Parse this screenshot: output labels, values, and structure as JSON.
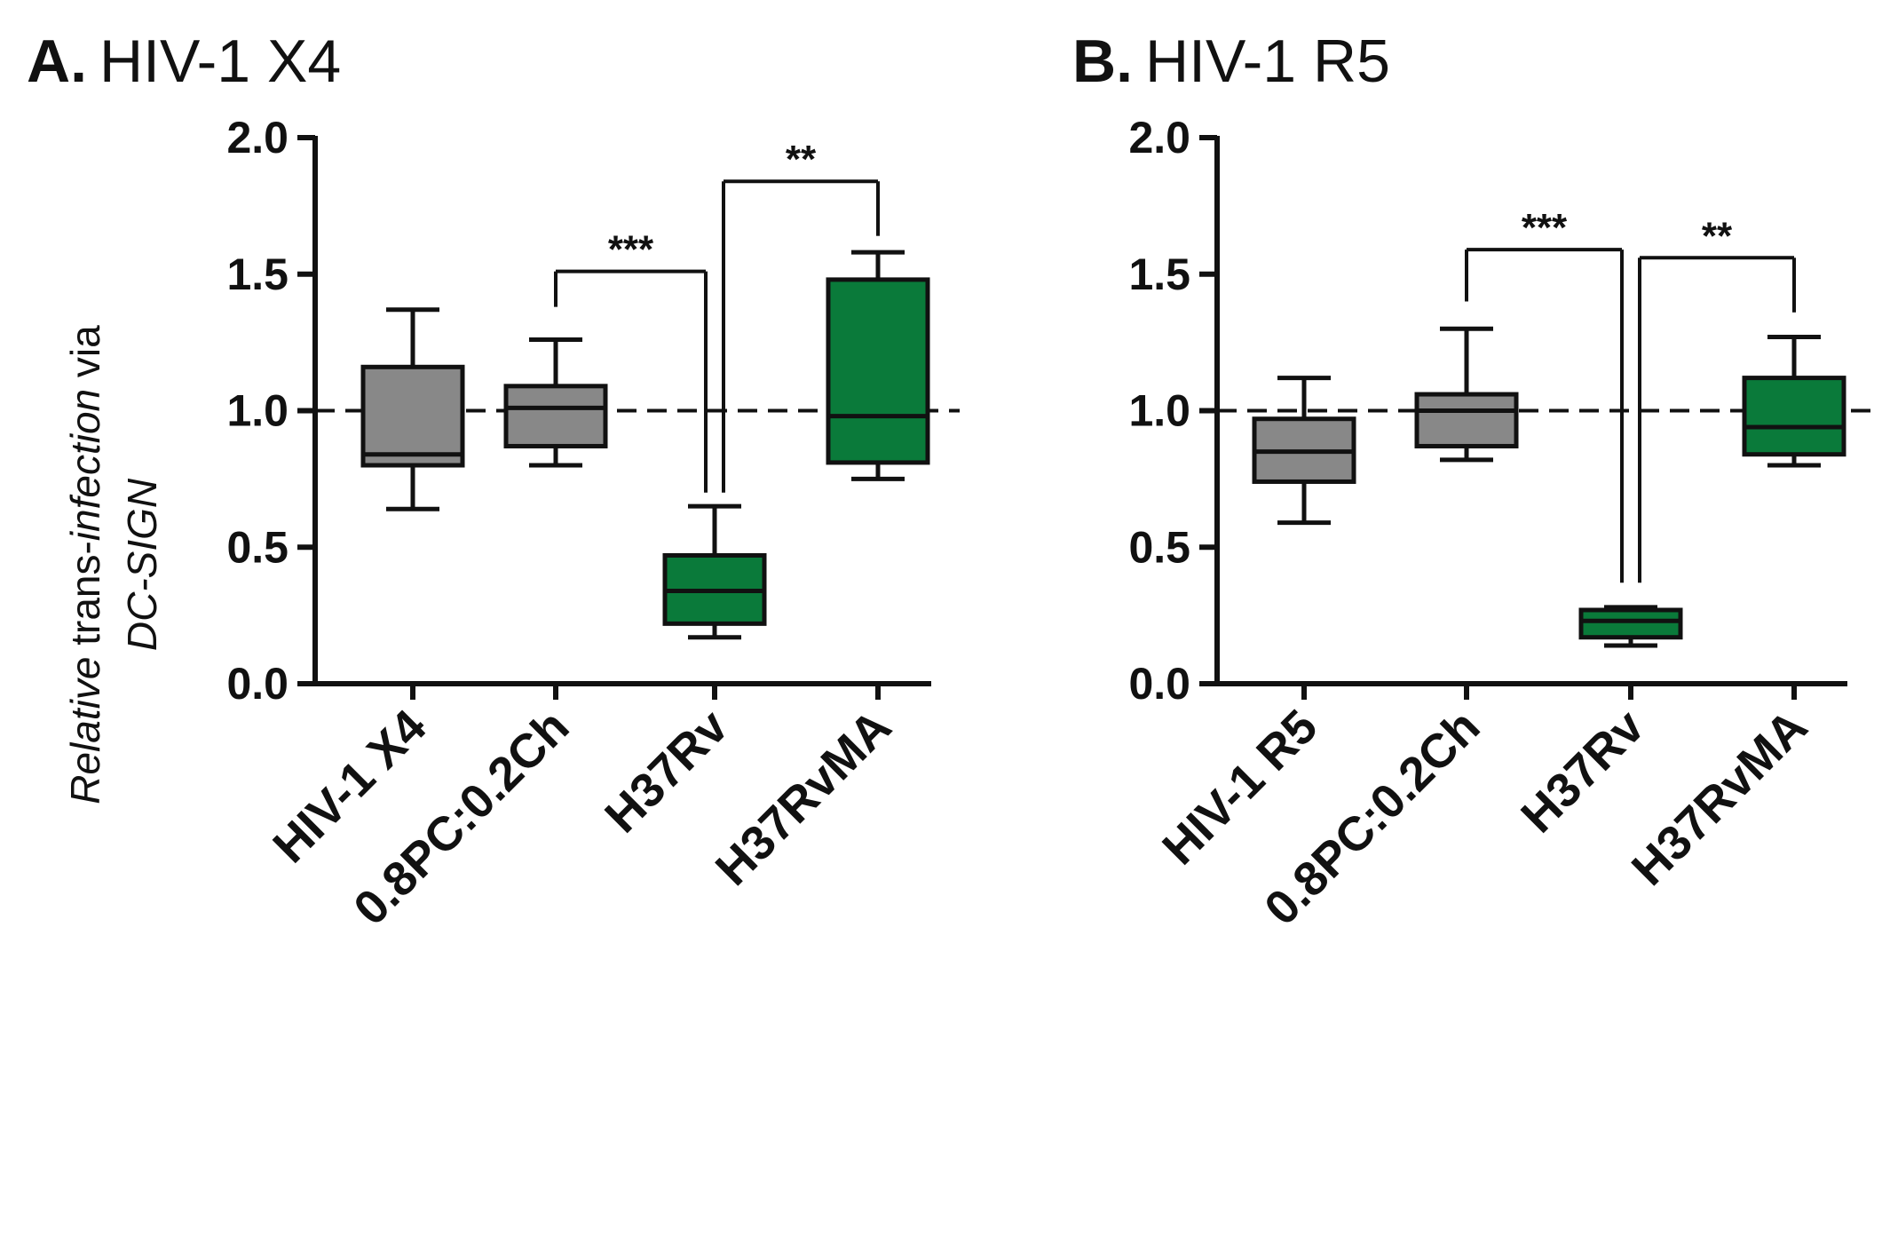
{
  "chart_data": [
    {
      "type": "box",
      "panel_letter": "A.",
      "title": "HIV-1 X4",
      "ylabel_line1_italic": "Relative",
      "ylabel_line1_mid": " trans-",
      "ylabel_line1_italic2": "infection",
      "ylabel_line1_end": " via",
      "ylabel_line2": "DC-SIGN",
      "ylim": [
        0,
        2.0
      ],
      "yticks": [
        "0.0",
        "0.5",
        "1.0",
        "1.5",
        "2.0"
      ],
      "reference_line": 1.0,
      "categories": [
        "HIV-1 X4",
        "0.8PC:0.2Ch",
        "H37Rv",
        "H37RvMA"
      ],
      "boxes": [
        {
          "min": 0.64,
          "q1": 0.8,
          "median": 0.84,
          "q3": 1.16,
          "max": 1.37,
          "color": "#888888"
        },
        {
          "min": 0.8,
          "q1": 0.87,
          "median": 1.01,
          "q3": 1.09,
          "max": 1.26,
          "color": "#888888"
        },
        {
          "min": 0.17,
          "q1": 0.22,
          "median": 0.34,
          "q3": 0.47,
          "max": 0.65,
          "color": "#0a7a3a"
        },
        {
          "min": 0.75,
          "q1": 0.81,
          "median": 0.98,
          "q3": 1.48,
          "max": 1.58,
          "color": "#0a7a3a"
        }
      ],
      "significance": [
        {
          "from": 1,
          "to": 2,
          "label": "***",
          "bar_y": 1.51,
          "from_y": 1.38,
          "to_y": 0.7
        },
        {
          "from": 2,
          "to": 3,
          "label": "**",
          "bar_y": 1.84,
          "from_y": 0.7,
          "to_y": 1.64
        }
      ]
    },
    {
      "type": "box",
      "panel_letter": "B.",
      "title": "HIV-1 R5",
      "ylim": [
        0,
        2.0
      ],
      "yticks": [
        "0.0",
        "0.5",
        "1.0",
        "1.5",
        "2.0"
      ],
      "reference_line": 1.0,
      "categories": [
        "HIV-1 R5",
        "0.8PC:0.2Ch",
        "H37Rv",
        "H37RvMA"
      ],
      "boxes": [
        {
          "min": 0.59,
          "q1": 0.74,
          "median": 0.85,
          "q3": 0.97,
          "max": 1.12,
          "color": "#888888"
        },
        {
          "min": 0.82,
          "q1": 0.87,
          "median": 1.0,
          "q3": 1.06,
          "max": 1.3,
          "color": "#888888"
        },
        {
          "min": 0.14,
          "q1": 0.17,
          "median": 0.23,
          "q3": 0.27,
          "max": 0.28,
          "color": "#0a7a3a"
        },
        {
          "min": 0.8,
          "q1": 0.84,
          "median": 0.94,
          "q3": 1.12,
          "max": 1.27,
          "color": "#0a7a3a"
        }
      ],
      "significance": [
        {
          "from": 1,
          "to": 2,
          "label": "***",
          "bar_y": 1.59,
          "from_y": 1.4,
          "to_y": 0.37
        },
        {
          "from": 2,
          "to": 3,
          "label": "**",
          "bar_y": 1.56,
          "from_y": 0.37,
          "to_y": 1.36
        }
      ]
    }
  ]
}
